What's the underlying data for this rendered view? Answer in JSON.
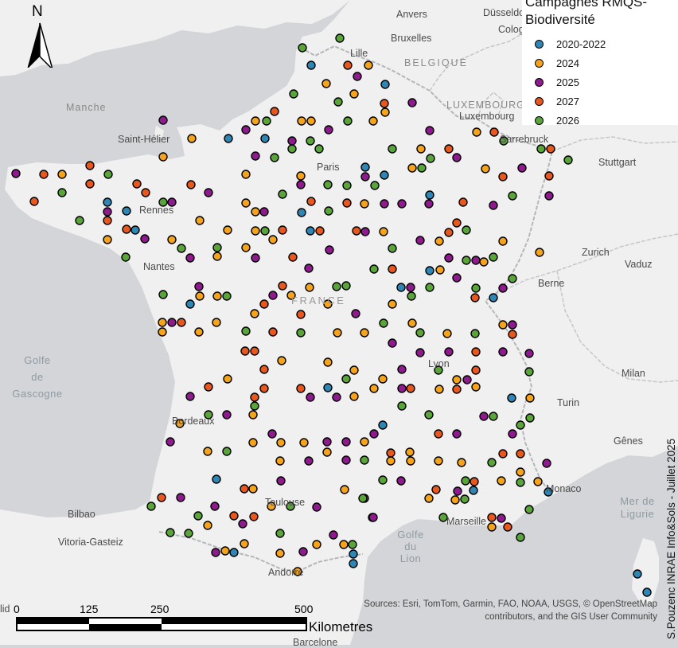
{
  "legend": {
    "title_line1": "Campagnes RMQS-",
    "title_line2": "Biodiversité",
    "items": [
      {
        "label": "2020-2022",
        "color": "#2e86b5"
      },
      {
        "label": "2024",
        "color": "#f5a31a"
      },
      {
        "label": "2025",
        "color": "#8e1a8e"
      },
      {
        "label": "2027",
        "color": "#e8571e"
      },
      {
        "label": "2026",
        "color": "#5aa53a"
      }
    ]
  },
  "north_label": "N",
  "places": {
    "anvers": "Anvers",
    "dusseldorf": "Düsseldorf",
    "cologne": "Colog",
    "bruxelles": "Bruxelles",
    "lille": "Lille",
    "belgique": "BELGIQUE",
    "luxembourg_country": "LUXEMBOURG",
    "luxembourg_city": "Luxembourg",
    "manche": "Manche",
    "saint_helier": "Saint-Hélier",
    "sarrebruck": "Sarrebruck",
    "stuttgart": "Stuttgart",
    "paris": "Paris",
    "rennes": "Rennes",
    "nantes": "Nantes",
    "zurich": "Zurich",
    "vaduz": "Vaduz",
    "berne": "Berne",
    "france": "FRANCE",
    "lyon": "Lyon",
    "milan": "Milan",
    "turin": "Turin",
    "bordeaux": "Bordeaux",
    "genes": "Gênes",
    "monaco": "Monaco",
    "toulouse": "Toulouse",
    "bilbao": "Bilbao",
    "vitoria": "Vitoria-Gasteiz",
    "marseille": "Marseille",
    "andorre": "Andorre",
    "barcelone": "Barcelone",
    "lid": "lid",
    "golfe_gascogne": [
      "Golfe",
      "de",
      "Gascogne"
    ],
    "golfe_lion": [
      "Golfe",
      "du",
      "Lion"
    ],
    "mer_ligurie": [
      "Mer de",
      "Ligurie"
    ]
  },
  "scale": {
    "ticks": [
      "0",
      "125",
      "250",
      "500"
    ],
    "unit": "Kilometres"
  },
  "credit_line1": "Sources: Esri, TomTom, Garmin, FAO, NOAA, USGS, © OpenStreetMap",
  "credit_line2": "contributors, and the GIS User Community",
  "author": "S.Pouzenc INRAE Info&Sols - Juillet 2025",
  "sites": [
    [
      380,
      60,
      4
    ],
    [
      391,
      82,
      0
    ],
    [
      427,
      48,
      4
    ],
    [
      437,
      82,
      3
    ],
    [
      463,
      82,
      1
    ],
    [
      449,
      96,
      2
    ],
    [
      410,
      105,
      1
    ],
    [
      484,
      106,
      0
    ],
    [
      369,
      118,
      4
    ],
    [
      425,
      128,
      4
    ],
    [
      445,
      118,
      1
    ],
    [
      483,
      130,
      3
    ],
    [
      518,
      129,
      2
    ],
    [
      484,
      141,
      1
    ],
    [
      345,
      140,
      3
    ],
    [
      335,
      152,
      4
    ],
    [
      321,
      152,
      1
    ],
    [
      309,
      163,
      2
    ],
    [
      379,
      152,
      1
    ],
    [
      391,
      152,
      1
    ],
    [
      413,
      163,
      2
    ],
    [
      437,
      152,
      4
    ],
    [
      469,
      152,
      1
    ],
    [
      390,
      177,
      4
    ],
    [
      367,
      177,
      2
    ],
    [
      401,
      187,
      4
    ],
    [
      333,
      174,
      0
    ],
    [
      287,
      174,
      0
    ],
    [
      241,
      174,
      1
    ],
    [
      205,
      151,
      2
    ],
    [
      205,
      197,
      1
    ],
    [
      113,
      208,
      3
    ],
    [
      136,
      219,
      4
    ],
    [
      78,
      219,
      1
    ],
    [
      55,
      219,
      3
    ],
    [
      20,
      218,
      2
    ],
    [
      78,
      242,
      4
    ],
    [
      43,
      253,
      3
    ],
    [
      113,
      231,
      3
    ],
    [
      172,
      231,
      3
    ],
    [
      183,
      242,
      3
    ],
    [
      135,
      254,
      0
    ],
    [
      159,
      265,
      0
    ],
    [
      135,
      266,
      2
    ],
    [
      135,
      277,
      3
    ],
    [
      100,
      277,
      4
    ],
    [
      159,
      288,
      3
    ],
    [
      170,
      289,
      0
    ],
    [
      182,
      300,
      2
    ],
    [
      205,
      254,
      4
    ],
    [
      216,
      254,
      2
    ],
    [
      262,
      242,
      2
    ],
    [
      240,
      232,
      3
    ],
    [
      309,
      219,
      1
    ],
    [
      321,
      196,
      2
    ],
    [
      345,
      198,
      4
    ],
    [
      367,
      187,
      4
    ],
    [
      378,
      221,
      1
    ],
    [
      378,
      232,
      2
    ],
    [
      355,
      244,
      4
    ],
    [
      309,
      255,
      1
    ],
    [
      321,
      266,
      1
    ],
    [
      332,
      266,
      2
    ],
    [
      379,
      267,
      0
    ],
    [
      391,
      253,
      3
    ],
    [
      413,
      265,
      4
    ],
    [
      436,
      255,
      3
    ],
    [
      458,
      256,
      1
    ],
    [
      483,
      256,
      2
    ],
    [
      505,
      256,
      2
    ],
    [
      539,
      256,
      2
    ],
    [
      540,
      245,
      0
    ],
    [
      582,
      254,
      3
    ],
    [
      620,
      258,
      2
    ],
    [
      644,
      246,
      4
    ],
    [
      610,
      212,
      1
    ],
    [
      632,
      222,
      3
    ],
    [
      656,
      211,
      2
    ],
    [
      574,
      198,
      2
    ],
    [
      541,
      199,
      4
    ],
    [
      530,
      211,
      4
    ],
    [
      518,
      211,
      1
    ],
    [
      529,
      187,
      1
    ],
    [
      564,
      187,
      3
    ],
    [
      599,
      166,
      1
    ],
    [
      621,
      166,
      3
    ],
    [
      633,
      177,
      4
    ],
    [
      680,
      187,
      4
    ],
    [
      692,
      187,
      3
    ],
    [
      714,
      201,
      4
    ],
    [
      690,
      221,
      3
    ],
    [
      690,
      246,
      2
    ],
    [
      540,
      164,
      2
    ],
    [
      493,
      187,
      4
    ],
    [
      483,
      220,
      0
    ],
    [
      459,
      210,
      0
    ],
    [
      459,
      222,
      2
    ],
    [
      471,
      233,
      4
    ],
    [
      436,
      233,
      4
    ],
    [
      412,
      232,
      4
    ],
    [
      355,
      289,
      3
    ],
    [
      343,
      301,
      1
    ],
    [
      333,
      290,
      4
    ],
    [
      321,
      290,
      1
    ],
    [
      286,
      289,
      1
    ],
    [
      251,
      277,
      1
    ],
    [
      228,
      312,
      4
    ],
    [
      216,
      301,
      1
    ],
    [
      158,
      323,
      4
    ],
    [
      135,
      301,
      1
    ],
    [
      239,
      324,
      2
    ],
    [
      273,
      311,
      4
    ],
    [
      273,
      322,
      1
    ],
    [
      309,
      311,
      1
    ],
    [
      321,
      324,
      2
    ],
    [
      368,
      323,
      3
    ],
    [
      390,
      290,
      0
    ],
    [
      402,
      290,
      3
    ],
    [
      414,
      314,
      2
    ],
    [
      448,
      290,
      3
    ],
    [
      459,
      291,
      2
    ],
    [
      482,
      291,
      1
    ],
    [
      493,
      312,
      4
    ],
    [
      528,
      302,
      2
    ],
    [
      552,
      303,
      1
    ],
    [
      564,
      292,
      3
    ],
    [
      574,
      280,
      3
    ],
    [
      586,
      289,
      4
    ],
    [
      632,
      303,
      1
    ],
    [
      678,
      317,
      1
    ],
    [
      620,
      323,
      4
    ],
    [
      608,
      329,
      1
    ],
    [
      598,
      327,
      2
    ],
    [
      586,
      327,
      4
    ],
    [
      564,
      324,
      2
    ],
    [
      540,
      340,
      0
    ],
    [
      553,
      339,
      1
    ],
    [
      574,
      349,
      2
    ],
    [
      598,
      362,
      4
    ],
    [
      597,
      374,
      3
    ],
    [
      620,
      374,
      0
    ],
    [
      632,
      362,
      2
    ],
    [
      644,
      350,
      4
    ],
    [
      470,
      338,
      4
    ],
    [
      493,
      338,
      3
    ],
    [
      504,
      361,
      0
    ],
    [
      516,
      361,
      2
    ],
    [
      517,
      372,
      4
    ],
    [
      540,
      361,
      4
    ],
    [
      518,
      406,
      1
    ],
    [
      493,
      382,
      1
    ],
    [
      482,
      406,
      4
    ],
    [
      447,
      394,
      2
    ],
    [
      435,
      359,
      4
    ],
    [
      423,
      360,
      4
    ],
    [
      412,
      382,
      1
    ],
    [
      388,
      337,
      2
    ],
    [
      389,
      361,
      1
    ],
    [
      355,
      359,
      3
    ],
    [
      343,
      371,
      2
    ],
    [
      366,
      371,
      1
    ],
    [
      332,
      382,
      3
    ],
    [
      320,
      394,
      1
    ],
    [
      285,
      372,
      4
    ],
    [
      273,
      372,
      1
    ],
    [
      251,
      372,
      1
    ],
    [
      239,
      382,
      0
    ],
    [
      250,
      360,
      2
    ],
    [
      205,
      370,
      4
    ],
    [
      204,
      405,
      1
    ],
    [
      216,
      405,
      2
    ],
    [
      228,
      405,
      3
    ],
    [
      204,
      417,
      1
    ],
    [
      250,
      417,
      1
    ],
    [
      272,
      405,
      1
    ],
    [
      309,
      416,
      4
    ],
    [
      343,
      417,
      3
    ],
    [
      378,
      418,
      4
    ],
    [
      378,
      395,
      3
    ],
    [
      424,
      418,
      1
    ],
    [
      458,
      418,
      1
    ],
    [
      493,
      431,
      2
    ],
    [
      528,
      418,
      4
    ],
    [
      562,
      419,
      1
    ],
    [
      597,
      419,
      4
    ],
    [
      632,
      408,
      1
    ],
    [
      644,
      408,
      2
    ],
    [
      644,
      420,
      3
    ],
    [
      632,
      442,
      2
    ],
    [
      665,
      444,
      2
    ],
    [
      564,
      442,
      2
    ],
    [
      551,
      465,
      4
    ],
    [
      598,
      442,
      3
    ],
    [
      598,
      465,
      3
    ],
    [
      587,
      477,
      2
    ],
    [
      574,
      477,
      1
    ],
    [
      574,
      489,
      3
    ],
    [
      552,
      489,
      1
    ],
    [
      528,
      443,
      2
    ],
    [
      505,
      464,
      2
    ],
    [
      481,
      476,
      1
    ],
    [
      505,
      488,
      2
    ],
    [
      516,
      488,
      3
    ],
    [
      470,
      488,
      1
    ],
    [
      445,
      465,
      1
    ],
    [
      435,
      476,
      4
    ],
    [
      412,
      455,
      1
    ],
    [
      412,
      487,
      0
    ],
    [
      423,
      499,
      2
    ],
    [
      445,
      498,
      1
    ],
    [
      390,
      499,
      2
    ],
    [
      378,
      488,
      3
    ],
    [
      354,
      453,
      1
    ],
    [
      332,
      464,
      3
    ],
    [
      308,
      441,
      3
    ],
    [
      320,
      441,
      3
    ],
    [
      286,
      476,
      1
    ],
    [
      320,
      499,
      3
    ],
    [
      332,
      488,
      3
    ],
    [
      320,
      510,
      4
    ],
    [
      318,
      521,
      1
    ],
    [
      285,
      521,
      2
    ],
    [
      262,
      486,
      3
    ],
    [
      239,
      498,
      2
    ],
    [
      262,
      521,
      4
    ],
    [
      226,
      532,
      1
    ],
    [
      214,
      555,
      2
    ],
    [
      261,
      567,
      1
    ],
    [
      285,
      567,
      4
    ],
    [
      318,
      556,
      1
    ],
    [
      342,
      545,
      2
    ],
    [
      353,
      556,
      1
    ],
    [
      352,
      579,
      1
    ],
    [
      388,
      579,
      2
    ],
    [
      411,
      568,
      1
    ],
    [
      435,
      578,
      2
    ],
    [
      458,
      578,
      4
    ],
    [
      491,
      569,
      3
    ],
    [
      491,
      579,
      1
    ],
    [
      515,
      568,
      1
    ],
    [
      481,
      603,
      4
    ],
    [
      458,
      626,
      3
    ],
    [
      468,
      650,
      2
    ],
    [
      504,
      604,
      2
    ],
    [
      539,
      626,
      1
    ],
    [
      548,
      615,
      3
    ],
    [
      575,
      617,
      2
    ],
    [
      585,
      604,
      4
    ],
    [
      596,
      605,
      3
    ],
    [
      630,
      604,
      1
    ],
    [
      654,
      606,
      4
    ],
    [
      654,
      593,
      1
    ],
    [
      676,
      605,
      1
    ],
    [
      689,
      618,
      0
    ],
    [
      687,
      582,
      2
    ],
    [
      632,
      570,
      3
    ],
    [
      654,
      570,
      3
    ],
    [
      618,
      581,
      4
    ],
    [
      580,
      581,
      1
    ],
    [
      551,
      579,
      1
    ],
    [
      516,
      579,
      1
    ],
    [
      574,
      545,
      2
    ],
    [
      551,
      545,
      3
    ],
    [
      539,
      521,
      4
    ],
    [
      505,
      510,
      4
    ],
    [
      481,
      534,
      0
    ],
    [
      470,
      545,
      2
    ],
    [
      458,
      555,
      1
    ],
    [
      435,
      555,
      2
    ],
    [
      411,
      555,
      2
    ],
    [
      382,
      556,
      1
    ],
    [
      353,
      604,
      2
    ],
    [
      318,
      614,
      1
    ],
    [
      307,
      614,
      3
    ],
    [
      272,
      602,
      0
    ],
    [
      203,
      625,
      3
    ],
    [
      227,
      625,
      2
    ],
    [
      190,
      636,
      4
    ],
    [
      214,
      669,
      4
    ],
    [
      237,
      670,
      4
    ],
    [
      249,
      648,
      4
    ],
    [
      261,
      660,
      1
    ],
    [
      270,
      636,
      2
    ],
    [
      294,
      648,
      3
    ],
    [
      305,
      658,
      2
    ],
    [
      319,
      649,
      3
    ],
    [
      283,
      692,
      1
    ],
    [
      294,
      694,
      0
    ],
    [
      271,
      694,
      2
    ],
    [
      307,
      683,
      1
    ],
    [
      352,
      670,
      4
    ],
    [
      341,
      636,
      1
    ],
    [
      365,
      636,
      4
    ],
    [
      398,
      637,
      2
    ],
    [
      433,
      615,
      1
    ],
    [
      456,
      626,
      4
    ],
    [
      469,
      650,
      2
    ],
    [
      398,
      684,
      1
    ],
    [
      381,
      693,
      2
    ],
    [
      352,
      695,
      1
    ],
    [
      419,
      672,
      2
    ],
    [
      432,
      684,
      1
    ],
    [
      443,
      684,
      4
    ],
    [
      444,
      696,
      0
    ],
    [
      444,
      708,
      0
    ],
    [
      374,
      718,
      1
    ],
    [
      557,
      650,
      4
    ],
    [
      572,
      628,
      1
    ],
    [
      584,
      627,
      4
    ],
    [
      595,
      616,
      0
    ],
    [
      618,
      650,
      3
    ],
    [
      618,
      662,
      1
    ],
    [
      630,
      651,
      2
    ],
    [
      638,
      662,
      3
    ],
    [
      654,
      675,
      4
    ],
    [
      665,
      640,
      4
    ],
    [
      666,
      525,
      4
    ],
    [
      644,
      545,
      2
    ],
    [
      654,
      534,
      4
    ],
    [
      666,
      500,
      1
    ],
    [
      643,
      500,
      0
    ],
    [
      620,
      523,
      4
    ],
    [
      608,
      523,
      2
    ],
    [
      665,
      467,
      4
    ],
    [
      598,
      486,
      1
    ],
    [
      801,
      721,
      0
    ],
    [
      813,
      744,
      0
    ]
  ]
}
